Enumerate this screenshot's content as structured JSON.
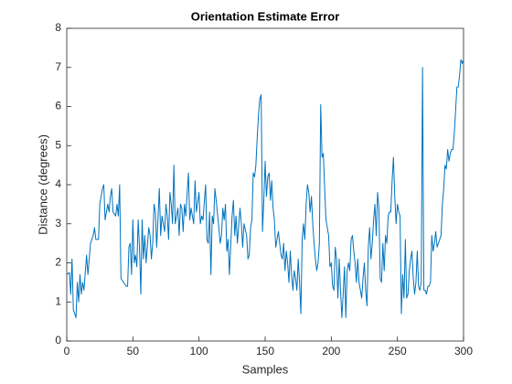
{
  "chart_data": {
    "type": "line",
    "title": "Orientation Estimate Error",
    "xlabel": "Samples",
    "ylabel": "Distance (degrees)",
    "x": [
      0,
      2,
      3,
      4,
      5,
      7,
      8,
      9,
      10,
      11,
      12,
      13,
      15,
      16,
      18,
      20,
      21,
      22,
      24,
      25,
      27,
      28,
      29,
      31,
      32,
      33,
      34,
      35,
      37,
      38,
      39,
      40,
      41,
      43,
      45,
      46,
      47,
      48,
      49,
      50,
      51,
      52,
      53,
      54,
      55,
      56,
      57,
      58,
      59,
      60,
      62,
      63,
      64,
      65,
      66,
      67,
      68,
      70,
      71,
      72,
      74,
      75,
      76,
      77,
      78,
      79,
      80,
      81,
      82,
      84,
      85,
      86,
      87,
      88,
      89,
      90,
      92,
      93,
      94,
      95,
      96,
      97,
      98,
      100,
      101,
      102,
      103,
      105,
      106,
      107,
      108,
      109,
      110,
      111,
      112,
      113,
      115,
      116,
      117,
      118,
      119,
      120,
      121,
      122,
      123,
      125,
      126,
      127,
      128,
      129,
      131,
      132,
      133,
      134,
      136,
      137,
      138,
      139,
      140,
      141,
      142,
      143,
      144,
      145,
      146,
      147,
      148,
      149,
      150,
      151,
      152,
      153,
      154,
      155,
      156,
      157,
      158,
      159,
      160,
      161,
      162,
      163,
      164,
      165,
      166,
      167,
      168,
      169,
      170,
      171,
      172,
      173,
      174,
      175,
      176,
      177,
      178,
      179,
      180,
      181,
      182,
      183,
      184,
      185,
      186,
      187,
      188,
      189,
      190,
      191,
      192,
      193,
      194,
      195,
      196,
      197,
      198,
      199,
      200,
      201,
      202,
      203,
      204,
      205,
      206,
      207,
      208,
      209,
      210,
      211,
      212,
      213,
      214,
      215,
      216,
      217,
      218,
      219,
      220,
      221,
      222,
      223,
      224,
      225,
      226,
      227,
      228,
      229,
      230,
      231,
      232,
      233,
      234,
      235,
      236,
      237,
      238,
      239,
      240,
      241,
      242,
      243,
      244,
      245,
      246,
      247,
      248,
      249,
      250,
      251,
      252,
      253,
      254,
      255,
      256,
      257,
      258,
      259,
      260,
      261,
      262,
      263,
      264,
      265,
      266,
      267,
      268,
      269,
      270,
      271,
      272,
      273,
      274,
      275,
      276,
      277,
      278,
      279,
      280,
      281,
      282,
      283,
      284,
      285,
      286,
      287,
      288,
      289,
      290,
      291,
      292,
      293,
      294,
      295,
      296,
      297,
      298,
      299,
      300
    ],
    "series": [
      {
        "color": "#0072bd",
        "values": [
          1.7,
          1.75,
          1.2,
          2.1,
          0.8,
          0.6,
          1.5,
          1.0,
          1.7,
          1.2,
          1.5,
          1.3,
          2.2,
          1.7,
          2.5,
          2.7,
          2.9,
          2.6,
          2.6,
          3.5,
          3.9,
          4.0,
          3.1,
          3.5,
          3.3,
          3.7,
          3.9,
          3.3,
          3.2,
          3.5,
          3.2,
          4.0,
          1.6,
          1.5,
          1.4,
          1.4,
          2.4,
          2.5,
          1.7,
          3.1,
          2.0,
          2.2,
          1.9,
          3.1,
          2.4,
          1.2,
          3.1,
          2.1,
          2.7,
          2.0,
          2.9,
          2.7,
          2.1,
          2.5,
          3.5,
          3.3,
          2.4,
          3.9,
          2.7,
          3.2,
          2.8,
          3.5,
          3.2,
          2.6,
          3.8,
          3.5,
          3.0,
          4.5,
          3.0,
          3.4,
          2.7,
          3.5,
          3.4,
          2.8,
          3.5,
          3.2,
          4.3,
          3.1,
          3.4,
          3.2,
          3.0,
          4.1,
          3.3,
          3.8,
          3.0,
          3.2,
          3.1,
          4.0,
          2.6,
          2.5,
          3.3,
          1.7,
          3.2,
          3.0,
          3.9,
          3.6,
          2.9,
          2.5,
          2.7,
          3.4,
          3.1,
          3.5,
          2.3,
          2.6,
          1.7,
          3.2,
          3.6,
          2.7,
          3.2,
          2.5,
          3.4,
          3.0,
          2.4,
          3.0,
          2.7,
          2.1,
          2.2,
          2.9,
          3.1,
          4.3,
          4.2,
          4.5,
          5.2,
          5.8,
          6.2,
          6.3,
          2.8,
          3.6,
          4.6,
          3.7,
          4.2,
          4.3,
          3.6,
          4.1,
          3.4,
          3.1,
          2.4,
          2.6,
          2.8,
          2.5,
          2.2,
          2.1,
          2.5,
          1.8,
          2.3,
          2.0,
          1.5,
          2.3,
          1.7,
          1.3,
          1.8,
          1.6,
          1.3,
          2.1,
          1.5,
          0.7,
          2.6,
          3.0,
          2.6,
          3.5,
          4.0,
          3.8,
          3.3,
          3.7,
          3.0,
          2.5,
          2.1,
          1.8,
          2.0,
          2.5,
          6.05,
          4.7,
          4.8,
          3.9,
          3.1,
          2.9,
          2.7,
          1.9,
          2.0,
          1.4,
          1.3,
          2.4,
          2.1,
          1.1,
          2.1,
          1.3,
          0.6,
          1.2,
          1.9,
          0.6,
          1.8,
          2.0,
          1.8,
          2.6,
          2.7,
          2.3,
          2.0,
          1.5,
          2.1,
          1.5,
          1.3,
          1.1,
          1.6,
          2.0,
          1.3,
          0.9,
          2.4,
          2.9,
          2.1,
          2.5,
          3.1,
          3.5,
          2.7,
          3.8,
          3.4,
          1.6,
          1.5,
          2.5,
          1.8,
          2.7,
          2.5,
          3.2,
          3.3,
          3.3,
          4.1,
          4.7,
          3.7,
          3.0,
          3.5,
          3.3,
          3.2,
          0.7,
          1.7,
          1.1,
          2.6,
          1.1,
          1.2,
          1.8,
          2.1,
          2.3,
          1.6,
          1.2,
          1.5,
          2.3,
          1.4,
          1.3,
          1.5,
          7.0,
          1.3,
          1.3,
          1.2,
          1.4,
          1.4,
          1.5,
          2.7,
          2.3,
          2.5,
          2.8,
          2.4,
          2.5,
          2.6,
          2.7,
          3.5,
          3.9,
          4.5,
          4.4,
          4.9,
          4.6,
          4.8,
          4.9,
          4.9,
          5.3,
          5.9,
          6.5,
          6.5,
          6.8,
          7.2,
          7.1,
          7.2
        ]
      }
    ],
    "xlim": [
      0,
      300
    ],
    "xticks": [
      0,
      50,
      100,
      150,
      200,
      250,
      300
    ],
    "ylim": [
      0,
      8
    ],
    "yticks": [
      0,
      1,
      2,
      3,
      4,
      5,
      6,
      7,
      8
    ]
  }
}
